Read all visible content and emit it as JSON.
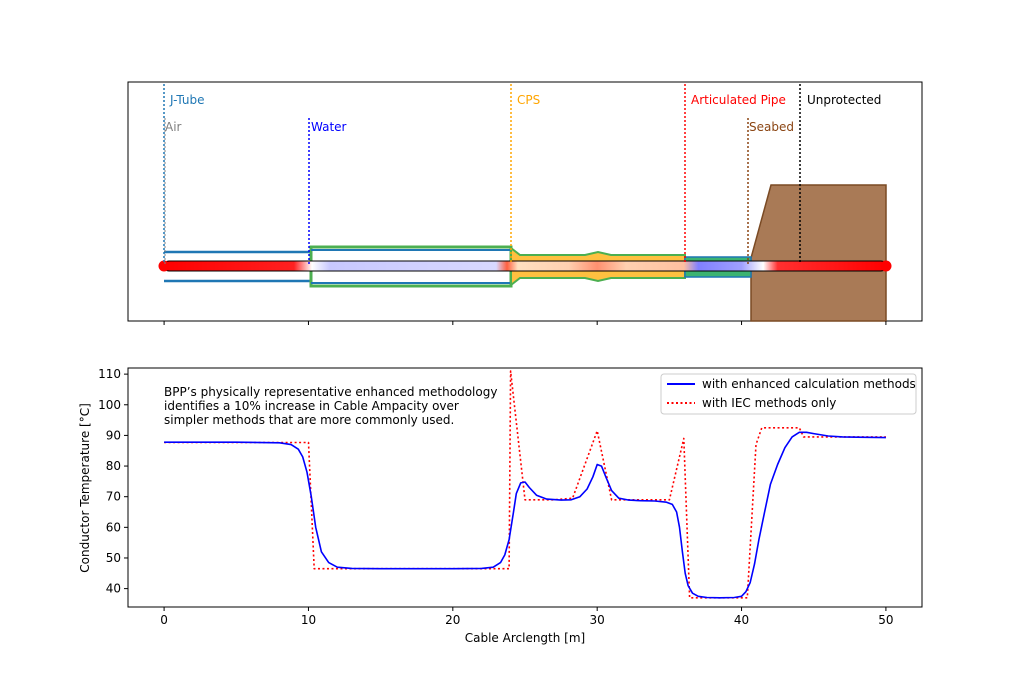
{
  "colors": {
    "jtube": "#1f77b4",
    "air": "#808080",
    "water": "#0000ff",
    "cps": "#ffa500",
    "articulated": "#ff0000",
    "seabed": "#8b4513",
    "unprotected": "#000000",
    "seabed_fill": "#a97a56",
    "cps_outer": "#4caf50",
    "cps_inner": "#ffc040",
    "enhanced_line": "#0000ff",
    "iec_line": "#ff0000"
  },
  "zones": {
    "top": [
      {
        "label": "J-Tube",
        "x": 0,
        "color": "#1f77b4"
      },
      {
        "label": "CPS",
        "x": 24,
        "color": "#ffa500"
      },
      {
        "label": "Articulated Pipe",
        "x": 36,
        "color": "#ff0000"
      },
      {
        "label": "Unprotected",
        "x": 44,
        "color": "#000000"
      }
    ],
    "bottom": [
      {
        "label": "Air",
        "x": 0,
        "color": "#808080"
      },
      {
        "label": "Water",
        "x": 10,
        "color": "#0000ff"
      },
      {
        "label": "Seabed",
        "x": 40.5,
        "color": "#8b4513"
      }
    ]
  },
  "annotation": {
    "line1": "BPP’s physically representative enhanced methodology",
    "line2": "identifies a 10% increase in Cable Ampacity over",
    "line3": "simpler methods that are more commonly used."
  },
  "chart_data": {
    "type": "line",
    "xlabel": "Cable Arclength [m]",
    "ylabel": "Conductor Temperature [°C]",
    "xlim": [
      -2.5,
      52.5
    ],
    "ylim": [
      34,
      112
    ],
    "xticks": [
      0,
      10,
      20,
      30,
      40,
      50
    ],
    "yticks": [
      40,
      50,
      60,
      70,
      80,
      90,
      100,
      110
    ],
    "legend_position": "top-right",
    "grid": false,
    "series": [
      {
        "name": "with enhanced calculation methods",
        "style": "solid",
        "color": "#0000ff",
        "x": [
          0,
          5,
          8,
          8.8,
          9.3,
          9.6,
          9.9,
          10.2,
          10.5,
          10.9,
          11.4,
          12,
          13,
          15,
          18,
          20,
          22,
          22.8,
          23.3,
          23.6,
          23.9,
          24.2,
          24.4,
          24.7,
          25,
          25.3,
          25.8,
          26.5,
          27.5,
          28.2,
          28.8,
          29.3,
          29.7,
          30,
          30.3,
          30.6,
          31,
          31.5,
          32.2,
          33,
          34,
          34.8,
          35.2,
          35.5,
          35.7,
          35.9,
          36.1,
          36.3,
          36.6,
          37,
          37.6,
          38.5,
          39.5,
          40,
          40.3,
          40.6,
          40.9,
          41.2,
          41.6,
          42,
          42.5,
          43,
          43.5,
          44,
          44.5,
          45,
          46,
          47,
          48,
          50
        ],
        "y": [
          87.8,
          87.8,
          87.6,
          87,
          85.5,
          83,
          78,
          70,
          60,
          52,
          48.5,
          47,
          46.6,
          46.5,
          46.5,
          46.5,
          46.6,
          47,
          48.5,
          51,
          56,
          65,
          71,
          74.5,
          74.8,
          73,
          70.5,
          69.2,
          68.9,
          69,
          70,
          72.5,
          76.5,
          80.5,
          80,
          76.5,
          72,
          69.5,
          68.9,
          68.7,
          68.6,
          68.2,
          67.5,
          65,
          60,
          52,
          45,
          41,
          38.5,
          37.5,
          37.1,
          37,
          37.1,
          37.5,
          39,
          42,
          48,
          56,
          65,
          74,
          80.5,
          86,
          89.5,
          91,
          91,
          90.6,
          89.8,
          89.5,
          89.4,
          89.3
        ]
      },
      {
        "name": "with IEC methods only",
        "style": "dotted",
        "color": "#ff0000",
        "x": [
          0,
          10,
          10.4,
          23.9,
          24,
          25,
          27,
          28.3,
          30,
          31,
          35,
          36,
          36.4,
          40.4,
          41,
          41.4,
          42.5,
          44,
          44.3,
          50
        ],
        "y": [
          87.7,
          87.7,
          46.5,
          46.5,
          111,
          69,
          69,
          69.5,
          91.5,
          69,
          69,
          89,
          37,
          37,
          87,
          92.5,
          92.5,
          92.5,
          89.5,
          89.5
        ]
      }
    ]
  }
}
